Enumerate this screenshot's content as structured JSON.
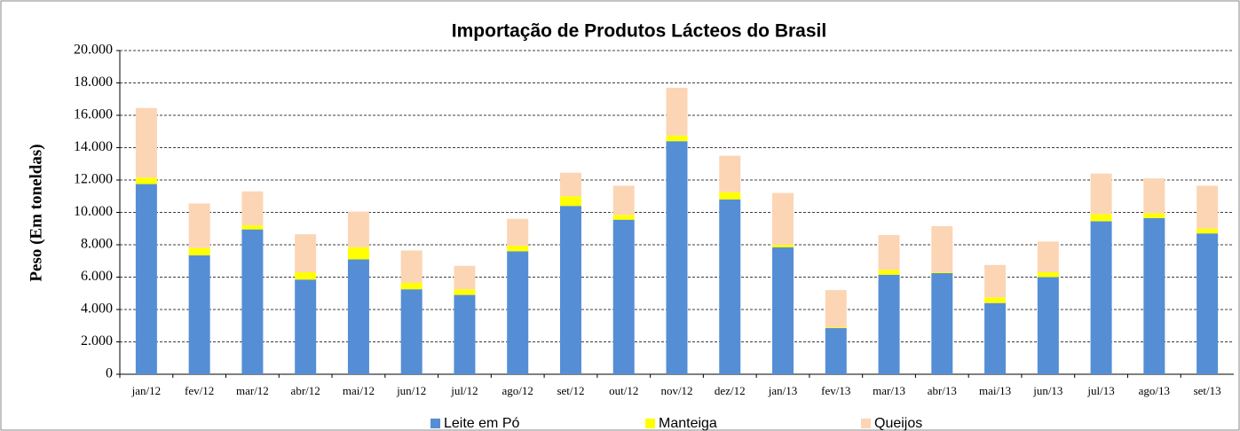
{
  "chart_data": {
    "type": "bar",
    "stacked": true,
    "title": "Importação de Produtos Lácteos do Brasil",
    "y_label": "Peso (Em toneldas)",
    "categories": [
      "jan/12",
      "fev/12",
      "mar/12",
      "abr/12",
      "mai/12",
      "jun/12",
      "jul/12",
      "ago/12",
      "set/12",
      "out/12",
      "nov/12",
      "dez/12",
      "jan/13",
      "fev/13",
      "mar/13",
      "abr/13",
      "mai/13",
      "jun/13",
      "jul/13",
      "ago/13",
      "set/13"
    ],
    "series": [
      {
        "name": "Leite em Pó",
        "color": "#558ed5",
        "values": [
          11750,
          7350,
          8950,
          5850,
          7100,
          5250,
          4900,
          7600,
          10400,
          9550,
          14400,
          10800,
          7850,
          2850,
          6150,
          6250,
          4400,
          6000,
          9450,
          9650,
          8700
        ]
      },
      {
        "name": "Manteiga",
        "color": "#ffff00",
        "values": [
          400,
          450,
          250,
          450,
          750,
          400,
          350,
          350,
          600,
          300,
          350,
          450,
          150,
          50,
          300,
          50,
          350,
          300,
          450,
          300,
          300
        ]
      },
      {
        "name": "Queijos",
        "color": "#fcd5b5",
        "values": [
          4300,
          2750,
          2100,
          2350,
          2200,
          2000,
          1450,
          1650,
          1450,
          1800,
          2950,
          2250,
          3200,
          2300,
          2150,
          2850,
          2000,
          1900,
          2500,
          2150,
          2650
        ]
      }
    ],
    "ylim": [
      0,
      20000
    ],
    "yticks": [
      0,
      {
        "value": 2000,
        "label": "2.000"
      },
      {
        "value": 4000,
        "label": "4.000"
      },
      {
        "value": 6000,
        "label": "6.000"
      },
      {
        "value": 8000,
        "label": "8.000"
      },
      {
        "value": 10000,
        "label": "10.000"
      },
      {
        "value": 12000,
        "label": "12.000"
      },
      {
        "value": 14000,
        "label": "14.000"
      },
      {
        "value": 16000,
        "label": "16.000"
      },
      {
        "value": 18000,
        "label": "18.000"
      },
      {
        "value": 20000,
        "label": "20.000"
      }
    ],
    "grid": true,
    "legend": "bottom"
  }
}
